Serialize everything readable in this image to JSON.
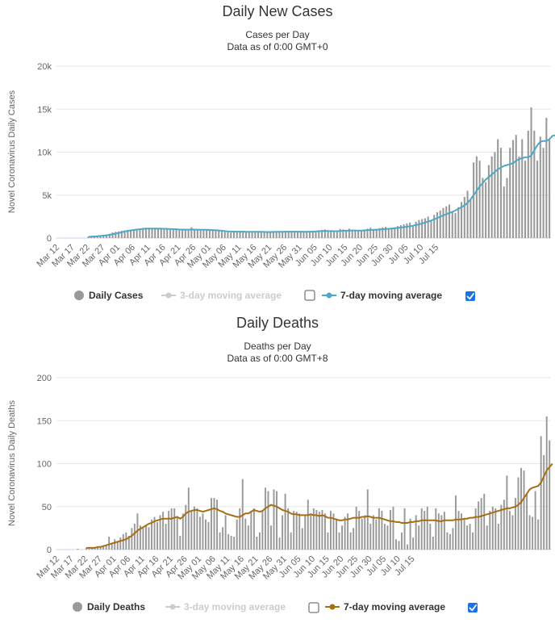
{
  "chart_data": [
    {
      "type": "bar",
      "title": "Daily New Cases",
      "subtitle_1": "Cases per Day",
      "subtitle_2": "Data as of 0:00 GMT+0",
      "ylabel": "Novel Coronavirus Daily Cases",
      "ylim": [
        0,
        20000
      ],
      "yticks": [
        "0",
        "5k",
        "10k",
        "15k",
        "20k"
      ],
      "ytick_values": [
        0,
        5000,
        10000,
        15000,
        20000
      ],
      "x_tick_labels": [
        "Mar 12",
        "Mar 17",
        "Mar 22",
        "Mar 27",
        "Apr 01",
        "Apr 06",
        "Apr 11",
        "Apr 16",
        "Apr 21",
        "Apr 26",
        "May 01",
        "May 06",
        "May 11",
        "May 16",
        "May 21",
        "May 26",
        "May 31",
        "Jun 05",
        "Jun 10",
        "Jun 15",
        "Jun 20",
        "Jun 25",
        "Jun 30",
        "Jul 05",
        "Jul 10",
        "Jul 15"
      ],
      "grid": true,
      "legend_position": "bottom",
      "series": [
        {
          "name": "Daily Cases",
          "kind": "bar",
          "color": "#999999",
          "values": [
            0,
            0,
            0,
            0,
            0,
            0,
            0,
            0,
            0,
            0,
            150,
            170,
            200,
            230,
            260,
            350,
            420,
            500,
            650,
            720,
            780,
            850,
            900,
            950,
            980,
            1020,
            1080,
            1100,
            1150,
            1180,
            1100,
            1050,
            1100,
            1150,
            1100,
            1000,
            1080,
            1050,
            1000,
            980,
            950,
            900,
            980,
            1050,
            1250,
            920,
            1000,
            950,
            880,
            900,
            920,
            880,
            850,
            800,
            780,
            720,
            700,
            650,
            700,
            750,
            800,
            820,
            650,
            700,
            780,
            750,
            720,
            700,
            680,
            650,
            700,
            720,
            760,
            700,
            800,
            850,
            780,
            700,
            720,
            750,
            780,
            700,
            650,
            720,
            800,
            850,
            900,
            950,
            1000,
            800,
            750,
            700,
            800,
            1050,
            1000,
            900,
            1100,
            950,
            900,
            800,
            850,
            1000,
            1100,
            1200,
            1000,
            900,
            1150,
            1250,
            1300,
            1100,
            1200,
            1250,
            1400,
            1500,
            1600,
            1700,
            1800,
            1500,
            1900,
            2100,
            2200,
            2300,
            2500,
            2100,
            2700,
            3000,
            3200,
            3500,
            3700,
            3900,
            3100,
            2900,
            3600,
            4200,
            4800,
            5500,
            4500,
            8800,
            9500,
            9000,
            7000,
            6500,
            8500,
            9500,
            10000,
            11500,
            10500,
            6000,
            7000,
            10500,
            11400,
            12000,
            9500,
            11500,
            9000,
            12500,
            15200,
            12500,
            9000,
            11800,
            10500,
            14000,
            11400
          ]
        },
        {
          "name": "3-day moving average",
          "kind": "line",
          "color": "#cccccc",
          "visible": false,
          "values": []
        },
        {
          "name": "7-day moving average",
          "kind": "line",
          "color": "#4da8c7",
          "values": [
            null,
            null,
            null,
            null,
            null,
            null,
            null,
            null,
            null,
            null,
            150,
            170,
            190,
            210,
            240,
            280,
            320,
            380,
            450,
            520,
            600,
            680,
            760,
            830,
            890,
            940,
            990,
            1030,
            1070,
            1100,
            1110,
            1100,
            1100,
            1100,
            1090,
            1080,
            1070,
            1050,
            1040,
            1020,
            1000,
            990,
            980,
            980,
            1000,
            990,
            980,
            980,
            970,
            960,
            950,
            930,
            910,
            880,
            850,
            810,
            780,
            760,
            750,
            740,
            740,
            740,
            730,
            730,
            730,
            730,
            730,
            720,
            710,
            700,
            700,
            710,
            720,
            720,
            730,
            740,
            740,
            740,
            740,
            740,
            740,
            730,
            730,
            740,
            750,
            770,
            800,
            820,
            830,
            820,
            810,
            800,
            800,
            820,
            840,
            850,
            870,
            880,
            880,
            870,
            870,
            890,
            910,
            940,
            960,
            980,
            1000,
            1020,
            1050,
            1080,
            1110,
            1140,
            1180,
            1220,
            1270,
            1310,
            1370,
            1440,
            1520,
            1600,
            1700,
            1800,
            1920,
            2040,
            2180,
            2320,
            2480,
            2640,
            2780,
            2920,
            3060,
            3200,
            3400,
            3600,
            3800,
            4100,
            4500,
            5000,
            5500,
            6000,
            6400,
            6800,
            7100,
            7400,
            7700,
            8000,
            8200,
            8400,
            8500,
            8600,
            8700,
            9000,
            9200,
            9300,
            9400,
            9400,
            9600,
            10200,
            10800,
            11200,
            11300,
            11300,
            11500,
            11900,
            11950,
            11900
          ]
        }
      ]
    },
    {
      "type": "bar",
      "title": "Daily Deaths",
      "subtitle_1": "Deaths per Day",
      "subtitle_2": "Data as of 0:00 GMT+8",
      "ylabel": "Novel Coronavirus Daily Deaths",
      "ylim": [
        0,
        200
      ],
      "yticks": [
        "0",
        "50",
        "100",
        "150",
        "200"
      ],
      "ytick_values": [
        0,
        50,
        100,
        150,
        200
      ],
      "x_tick_labels": [
        "Mar 12",
        "Mar 17",
        "Mar 22",
        "Mar 27",
        "Apr 01",
        "Apr 06",
        "Apr 11",
        "Apr 16",
        "Apr 21",
        "Apr 26",
        "May 01",
        "May 06",
        "May 11",
        "May 16",
        "May 21",
        "May 26",
        "May 31",
        "Jun 05",
        "Jun 10",
        "Jun 15",
        "Jun 20",
        "Jun 25",
        "Jun 30",
        "Jul 05",
        "Jul 10",
        "Jul 15"
      ],
      "grid": true,
      "legend_position": "bottom",
      "series": [
        {
          "name": "Daily Deaths",
          "kind": "bar",
          "color": "#999999",
          "values": [
            0,
            0,
            0,
            0,
            0,
            0,
            0,
            1,
            0,
            0,
            2,
            1,
            2,
            3,
            2,
            3,
            4,
            5,
            15,
            8,
            12,
            10,
            14,
            18,
            20,
            16,
            25,
            30,
            42,
            28,
            25,
            28,
            26,
            35,
            38,
            32,
            40,
            44,
            30,
            45,
            48,
            48,
            38,
            16,
            42,
            52,
            72,
            45,
            50,
            48,
            38,
            42,
            35,
            32,
            60,
            60,
            58,
            20,
            26,
            40,
            18,
            16,
            15,
            35,
            48,
            82,
            36,
            28,
            45,
            48,
            15,
            20,
            45,
            72,
            68,
            28,
            70,
            68,
            14,
            40,
            65,
            48,
            20,
            45,
            44,
            42,
            25,
            40,
            58,
            42,
            48,
            46,
            44,
            46,
            42,
            20,
            45,
            42,
            36,
            20,
            28,
            38,
            42,
            20,
            25,
            50,
            45,
            36,
            40,
            70,
            30,
            40,
            35,
            48,
            45,
            30,
            28,
            46,
            50,
            12,
            10,
            20,
            48,
            6,
            36,
            14,
            40,
            28,
            48,
            45,
            50,
            30,
            15,
            48,
            42,
            40,
            44,
            20,
            18,
            25,
            63,
            45,
            42,
            36,
            28,
            30,
            20,
            48,
            56,
            60,
            65,
            28,
            45,
            50,
            48,
            30,
            52,
            58,
            86,
            45,
            40,
            60,
            84,
            95,
            92,
            65,
            40,
            38,
            68,
            35,
            132,
            110,
            155,
            127
          ]
        },
        {
          "name": "3-day moving average",
          "kind": "line",
          "color": "#cccccc",
          "visible": false,
          "values": []
        },
        {
          "name": "7-day moving average",
          "kind": "line",
          "color": "#a86d14",
          "values": [
            null,
            null,
            null,
            null,
            null,
            null,
            null,
            null,
            null,
            null,
            2,
            2,
            2,
            2,
            3,
            3,
            4,
            5,
            6,
            7,
            8,
            9,
            10,
            11,
            12,
            14,
            16,
            19,
            22,
            24,
            26,
            28,
            30,
            31,
            33,
            34,
            35,
            36,
            36,
            36,
            36,
            37,
            38,
            36,
            38,
            42,
            44,
            45,
            46,
            46,
            45,
            44,
            45,
            46,
            47,
            48,
            47,
            45,
            44,
            42,
            41,
            40,
            39,
            38,
            38,
            40,
            42,
            42,
            44,
            46,
            45,
            44,
            45,
            48,
            50,
            52,
            51,
            50,
            48,
            46,
            45,
            44,
            42,
            41,
            41,
            40,
            40,
            40,
            40,
            41,
            40,
            40,
            39,
            40,
            39,
            37,
            37,
            36,
            35,
            34,
            34,
            35,
            35,
            36,
            37,
            37,
            37,
            38,
            38,
            39,
            38,
            37,
            37,
            37,
            36,
            35,
            34,
            33,
            33,
            32,
            32,
            31,
            31,
            31,
            32,
            32,
            33,
            33,
            34,
            34,
            34,
            34,
            34,
            34,
            33,
            33,
            34,
            34,
            34,
            34,
            35,
            35,
            35,
            36,
            36,
            37,
            37,
            38,
            38,
            39,
            40,
            41,
            42,
            43,
            44,
            45,
            46,
            47,
            48,
            48,
            49,
            50,
            52,
            55,
            60,
            65,
            70,
            72,
            73,
            74,
            78,
            85,
            92,
            96,
            100
          ]
        }
      ]
    }
  ],
  "legends": [
    {
      "daily": "Daily Cases",
      "ma3": "3-day moving average",
      "ma7": "7-day moving average"
    },
    {
      "daily": "Daily Deaths",
      "ma3": "3-day moving average",
      "ma7": "7-day moving average"
    }
  ],
  "checkboxes": {
    "ma3_checked": false,
    "ma7_checked": true
  }
}
